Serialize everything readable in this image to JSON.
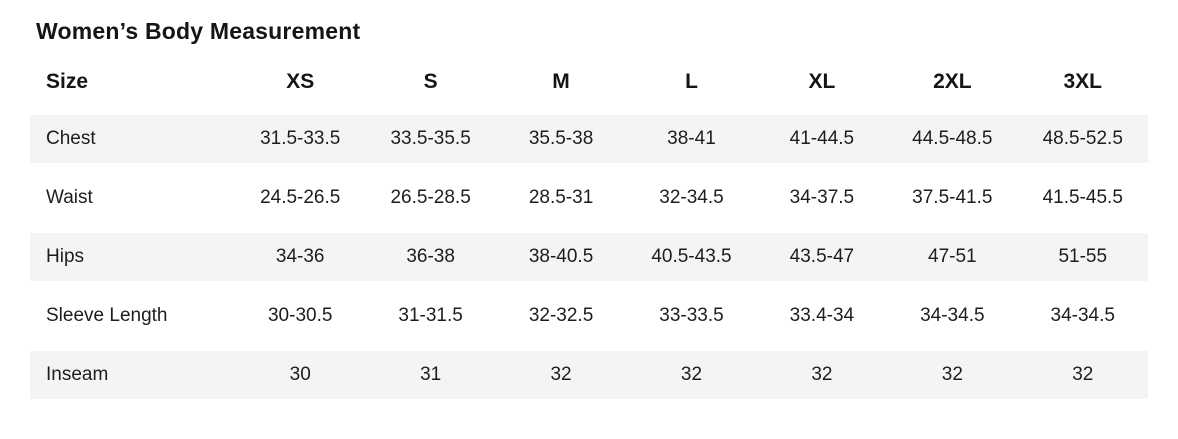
{
  "title": "Women’s Body Measurement",
  "colors": {
    "stripe": "#f4f4f4",
    "text": "#1d1d1d",
    "background": "#ffffff"
  },
  "table": {
    "header": [
      "Size",
      "XS",
      "S",
      "M",
      "L",
      "XL",
      "2XL",
      "3XL"
    ],
    "rows": [
      {
        "label": "Chest",
        "values": [
          "31.5-33.5",
          "33.5-35.5",
          "35.5-38",
          "38-41",
          "41-44.5",
          "44.5-48.5",
          "48.5-52.5"
        ]
      },
      {
        "label": "Waist",
        "values": [
          "24.5-26.5",
          "26.5-28.5",
          "28.5-31",
          "32-34.5",
          "34-37.5",
          "37.5-41.5",
          "41.5-45.5"
        ]
      },
      {
        "label": "Hips",
        "values": [
          "34-36",
          "36-38",
          "38-40.5",
          "40.5-43.5",
          "43.5-47",
          "47-51",
          "51-55"
        ]
      },
      {
        "label": "Sleeve Length",
        "values": [
          "30-30.5",
          "31-31.5",
          "32-32.5",
          "33-33.5",
          "33.4-34",
          "34-34.5",
          "34-34.5"
        ]
      },
      {
        "label": "Inseam",
        "values": [
          "30",
          "31",
          "32",
          "32",
          "32",
          "32",
          "32"
        ]
      }
    ]
  }
}
